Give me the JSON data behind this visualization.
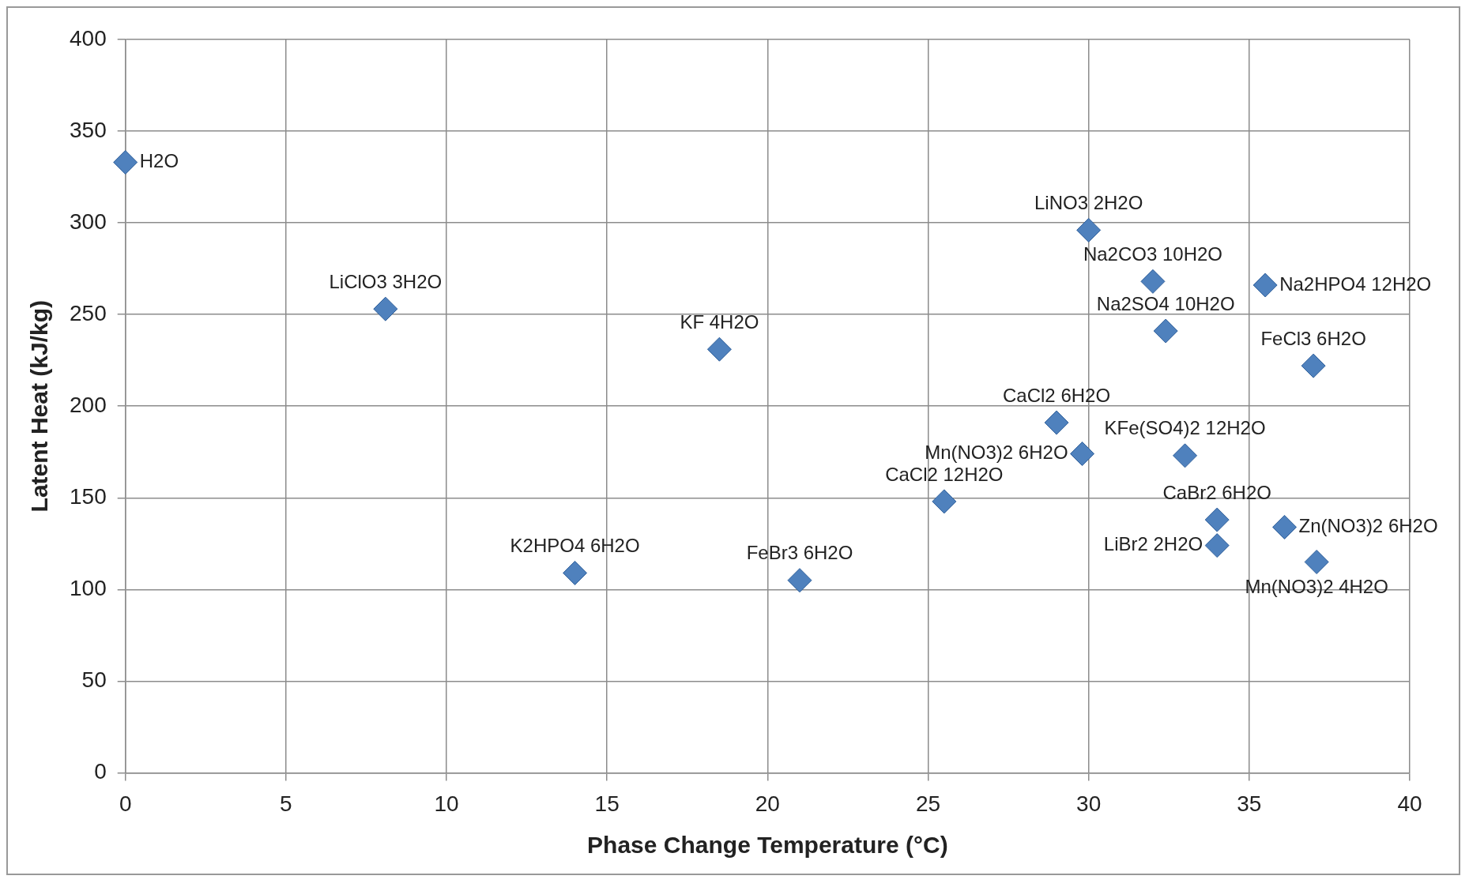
{
  "chart_data": {
    "type": "scatter",
    "xlabel": "Phase Change Temperature (°C)",
    "ylabel": "Latent Heat (kJ/kg)",
    "xlim": [
      0,
      40
    ],
    "xticks": [
      0,
      5,
      10,
      15,
      20,
      25,
      30,
      35,
      40
    ],
    "ylim": [
      0,
      400
    ],
    "yticks": [
      0,
      50,
      100,
      150,
      200,
      250,
      300,
      350,
      400
    ],
    "grid": true,
    "legend": false,
    "marker": "diamond",
    "series": [
      {
        "color": "#4f81bd",
        "x": [
          0,
          8.1,
          18.5,
          14,
          21,
          25.5,
          29,
          29.8,
          30,
          32,
          32.4,
          33,
          34,
          34,
          35.5,
          36.1,
          37,
          37.1
        ],
        "values": [
          333,
          253,
          231,
          109,
          105,
          148,
          191,
          174,
          296,
          268,
          241,
          173,
          138,
          124,
          266,
          134,
          222,
          115
        ],
        "value_labels": [
          "H2O",
          "LiClO3 3H2O",
          "KF 4H2O",
          "K2HPO4 6H2O",
          "FeBr3 6H2O",
          "CaCl2 12H2O",
          "CaCl2 6H2O",
          "Mn(NO3)2 6H2O",
          "LiNO3 2H2O",
          "Na2CO3 10H2O",
          "Na2SO4 10H2O",
          "KFe(SO4)2 12H2O",
          "CaBr2 6H2O",
          "LiBr2 2H2O",
          "Na2HPO4 12H2O",
          "Zn(NO3)2 6H2O",
          "FeCl3 6H2O",
          "Mn(NO3)2 4H2O"
        ]
      }
    ]
  }
}
